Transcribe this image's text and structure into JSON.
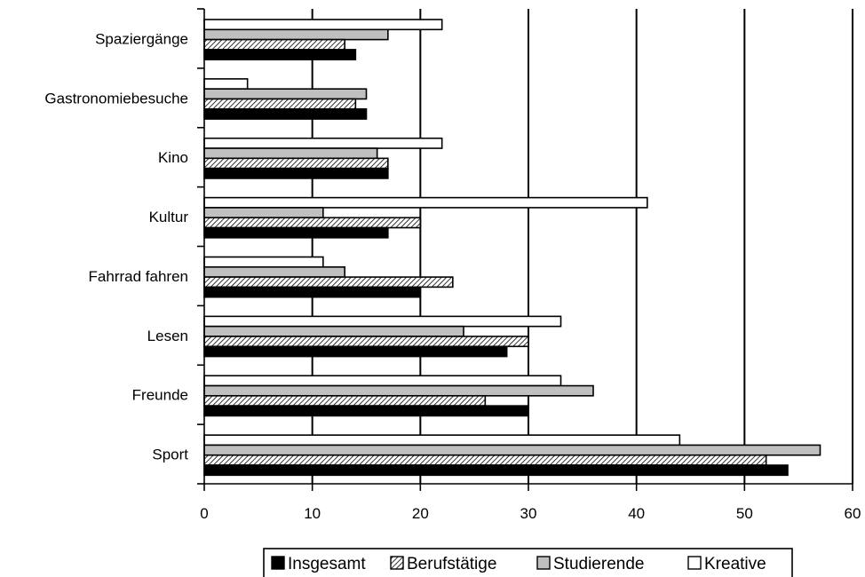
{
  "chart_data": {
    "type": "bar",
    "orientation": "horizontal",
    "categories": [
      "Spaziergänge",
      "Gastronomiebesuche",
      "Kino",
      "Kultur",
      "Fahrrad fahren",
      "Lesen",
      "Freunde",
      "Sport"
    ],
    "series": [
      {
        "name": "Insgesamt",
        "values": [
          14,
          15,
          17,
          17,
          20,
          28,
          30,
          54
        ],
        "fill": "black"
      },
      {
        "name": "Berufstätige",
        "values": [
          13,
          14,
          17,
          20,
          23,
          30,
          26,
          52
        ],
        "fill": "hatch"
      },
      {
        "name": "Studierende",
        "values": [
          17,
          15,
          16,
          11,
          13,
          24,
          36,
          57
        ],
        "fill": "gray"
      },
      {
        "name": "Kreative",
        "values": [
          22,
          4,
          22,
          41,
          11,
          33,
          33,
          44
        ],
        "fill": "white"
      }
    ],
    "xlim": [
      0,
      60
    ],
    "xticks": [
      "0",
      "10",
      "20",
      "30",
      "40",
      "50",
      "60"
    ],
    "grid": "vertical",
    "legend_position": "bottom",
    "colors": {
      "black": "#000000",
      "gray": "#c0c0c0",
      "white": "#ffffff",
      "hatch_bg": "#ffffff",
      "hatch_line": "#000000"
    }
  }
}
